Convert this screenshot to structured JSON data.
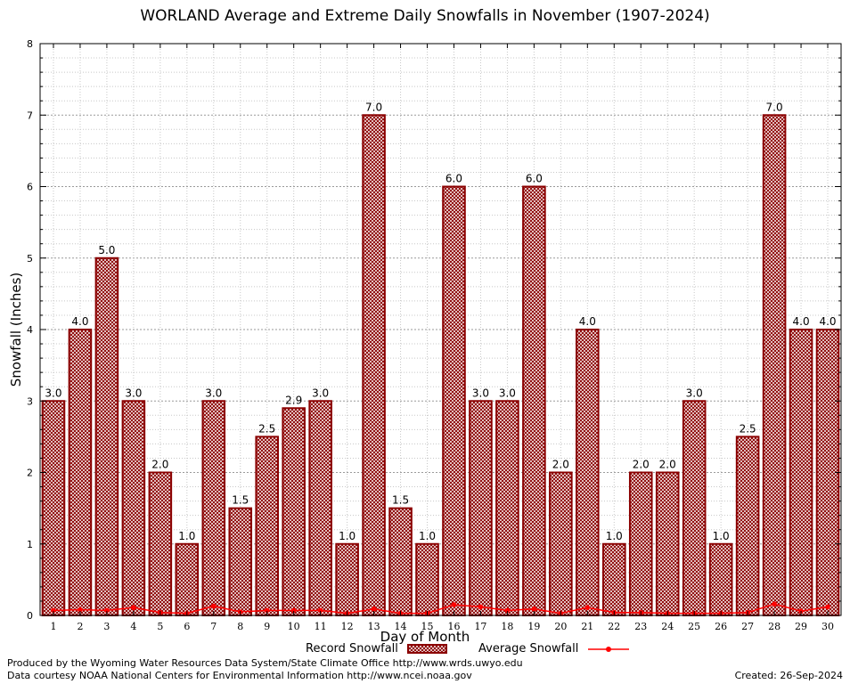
{
  "chart_data": {
    "type": "bar",
    "title": "WORLAND Average and Extreme Daily Snowfalls in November (1907-2024)",
    "xlabel": "Day of Month",
    "ylabel": "Snowfall (Inches)",
    "ylim": [
      0,
      8
    ],
    "yticks": [
      0,
      1,
      2,
      3,
      4,
      5,
      6,
      7,
      8
    ],
    "categories": [
      "1",
      "2",
      "3",
      "4",
      "5",
      "6",
      "7",
      "8",
      "9",
      "10",
      "11",
      "12",
      "13",
      "14",
      "15",
      "16",
      "17",
      "18",
      "19",
      "20",
      "21",
      "22",
      "23",
      "24",
      "25",
      "26",
      "27",
      "28",
      "29",
      "30"
    ],
    "series": [
      {
        "name": "Record Snowfall",
        "kind": "bar",
        "values": [
          3.0,
          4.0,
          5.0,
          3.0,
          2.0,
          1.0,
          3.0,
          1.5,
          2.5,
          2.9,
          3.0,
          1.0,
          7.0,
          1.5,
          1.0,
          6.0,
          3.0,
          3.0,
          6.0,
          2.0,
          4.0,
          1.0,
          2.0,
          2.0,
          3.0,
          1.0,
          2.5,
          7.0,
          4.0,
          4.0
        ],
        "labels": [
          "3.0",
          "4.0",
          "5.0",
          "3.0",
          "2.0",
          "1.0",
          "3.0",
          "1.5",
          "2.5",
          "2.9",
          "3.0",
          "1.0",
          "7.0",
          "1.5",
          "1.0",
          "6.0",
          "3.0",
          "3.0",
          "6.0",
          "2.0",
          "4.0",
          "1.0",
          "2.0",
          "2.0",
          "3.0",
          "1.0",
          "2.5",
          "7.0",
          "4.0",
          "4.0"
        ],
        "color": "#8b0000"
      },
      {
        "name": "Average Snowfall",
        "kind": "line",
        "values": [
          0.07,
          0.08,
          0.07,
          0.11,
          0.04,
          0.03,
          0.13,
          0.05,
          0.07,
          0.07,
          0.07,
          0.03,
          0.09,
          0.03,
          0.03,
          0.15,
          0.12,
          0.07,
          0.09,
          0.03,
          0.11,
          0.04,
          0.04,
          0.03,
          0.03,
          0.03,
          0.04,
          0.16,
          0.06,
          0.12
        ],
        "color": "#ff0000"
      }
    ],
    "grid": true,
    "legend_position": "bottom-center"
  },
  "footer": {
    "produced_by": "Produced by the Wyoming Water Resources Data System/State Climate Office http://www.wrds.uwyo.edu",
    "data_courtesy": "Data courtesy NOAA National Centers for Environmental Information http://www.ncei.noaa.gov",
    "created": "Created:  26-Sep-2024"
  }
}
